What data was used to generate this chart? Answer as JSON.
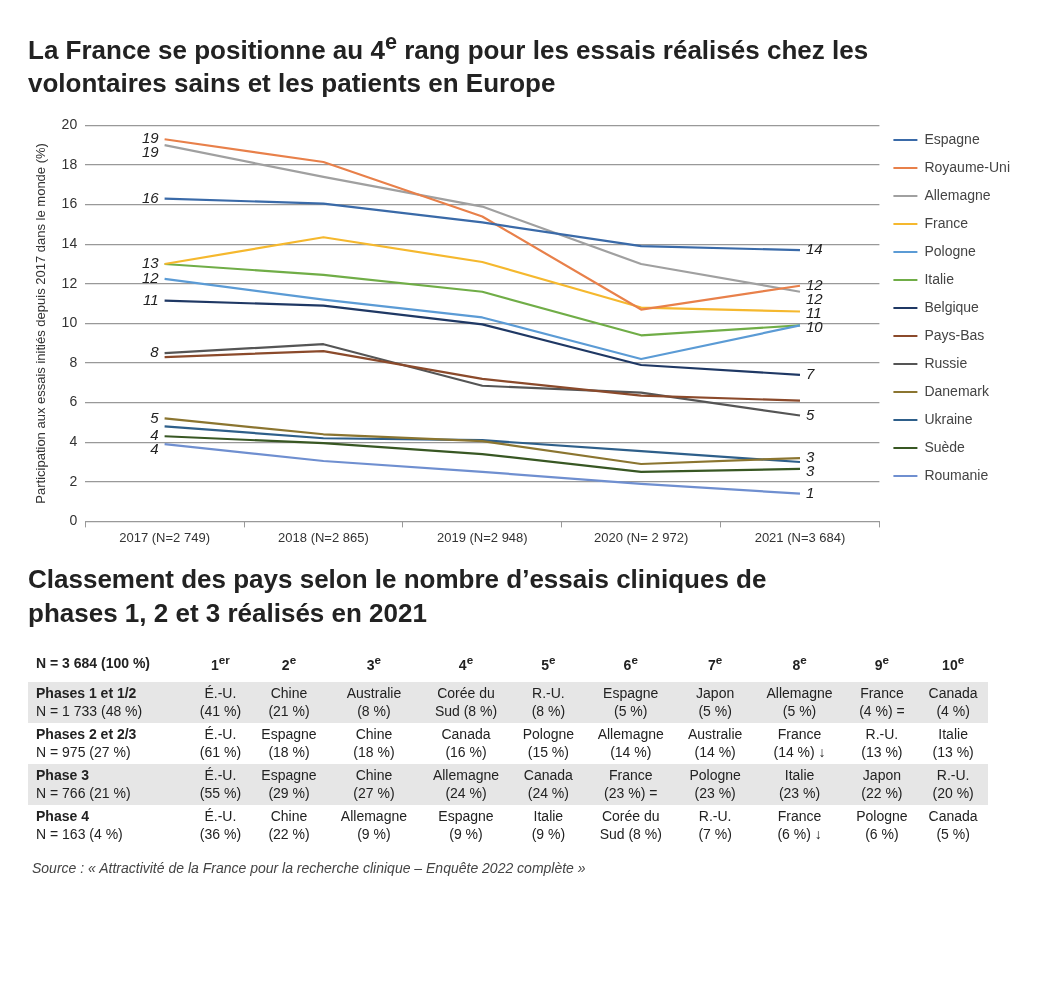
{
  "chart_data": [
    {
      "type": "line",
      "title": "La France se positionne au 4$^{e}$ rang pour les essais réalisés chez les volontaires sains et les patients en Europe",
      "ylabel": "Participation aux essais initiés depuis 2017 dans le monde (%)",
      "categories": [
        "2017 (N=2 749)",
        "2018 (N=2 865)",
        "2019 (N=2 948)",
        "2020 (N= 2 972)",
        "2021 (N=3 684)"
      ],
      "series": [
        {
          "name": "Espagne",
          "color": "#3a6aa8",
          "values": [
            16.3,
            16.05,
            15.1,
            13.9,
            13.7
          ]
        },
        {
          "name": "Royaume-Uni",
          "color": "#e8804a",
          "values": [
            19.3,
            18.15,
            15.4,
            10.7,
            11.9
          ]
        },
        {
          "name": "Allemagne",
          "color": "#a0a0a0",
          "values": [
            19.0,
            17.4,
            15.9,
            13.0,
            11.6
          ]
        },
        {
          "name": "France",
          "color": "#f5b82e",
          "values": [
            13.0,
            14.35,
            13.1,
            10.8,
            10.6
          ]
        },
        {
          "name": "Pologne",
          "color": "#5b9bd5",
          "values": [
            12.25,
            11.2,
            10.3,
            8.2,
            9.9
          ]
        },
        {
          "name": "Italie",
          "color": "#70ad47",
          "values": [
            13.0,
            12.45,
            11.6,
            9.4,
            9.9
          ]
        },
        {
          "name": "Belgique",
          "color": "#1f3864",
          "values": [
            11.15,
            10.9,
            9.95,
            7.9,
            7.4
          ]
        },
        {
          "name": "Pays-Bas",
          "color": "#8b4a2b",
          "values": [
            8.3,
            8.6,
            7.2,
            6.35,
            6.1
          ]
        },
        {
          "name": "Russie",
          "color": "#555555",
          "values": [
            8.5,
            8.95,
            6.85,
            6.5,
            5.35
          ]
        },
        {
          "name": "Danemark",
          "color": "#8b7530",
          "values": [
            5.2,
            4.4,
            4.05,
            2.9,
            3.2
          ]
        },
        {
          "name": "Ukraine",
          "color": "#2e5f8a",
          "values": [
            4.8,
            4.2,
            4.1,
            3.55,
            3.0
          ]
        },
        {
          "name": "Suède",
          "color": "#385723",
          "values": [
            4.3,
            3.95,
            3.4,
            2.5,
            2.65
          ]
        },
        {
          "name": "Roumanie",
          "color": "#6f8fd0",
          "values": [
            3.9,
            3.05,
            2.5,
            1.9,
            1.4
          ]
        }
      ],
      "ylim": [
        0,
        20
      ],
      "yticks": [
        0,
        2,
        4,
        6,
        8,
        10,
        12,
        14,
        16,
        18,
        20
      ],
      "grid": "y",
      "legend": "right",
      "annotations": [
        {
          "text": "19",
          "x": "2017 (N=2 749)",
          "y": 19.3
        },
        {
          "text": "19",
          "x": "2017 (N=2 749)",
          "y": 19.0
        },
        {
          "text": "16",
          "x": "2017 (N=2 749)",
          "y": 16.3
        },
        {
          "text": "13",
          "x": "2017 (N=2 749)",
          "y": 13.0
        },
        {
          "text": "12",
          "x": "2017 (N=2 749)",
          "y": 12.25
        },
        {
          "text": "11",
          "x": "2017 (N=2 749)",
          "y": 11.15
        },
        {
          "text": "8",
          "x": "2017 (N=2 749)",
          "y": 8.5
        },
        {
          "text": "5",
          "x": "2017 (N=2 749)",
          "y": 5.2
        },
        {
          "text": "4",
          "x": "2017 (N=2 749)",
          "y": 4.3
        },
        {
          "text": "4",
          "x": "2017 (N=2 749)",
          "y": 3.9
        },
        {
          "text": "14",
          "x": "2021 (N=3 684)",
          "y": 13.7
        },
        {
          "text": "12",
          "x": "2021 (N=3 684)",
          "y": 11.9
        },
        {
          "text": "12",
          "x": "2021 (N=3 684)",
          "y": 11.6
        },
        {
          "text": "11",
          "x": "2021 (N=3 684)",
          "y": 10.6
        },
        {
          "text": "10",
          "x": "2021 (N=3 684)",
          "y": 9.9
        },
        {
          "text": "7",
          "x": "2021 (N=3 684)",
          "y": 7.4
        },
        {
          "text": "5",
          "x": "2021 (N=3 684)",
          "y": 5.35
        },
        {
          "text": "3",
          "x": "2021 (N=3 684)",
          "y": 3.2
        },
        {
          "text": "3",
          "x": "2021 (N=3 684)",
          "y": 2.65
        },
        {
          "text": "1",
          "x": "2021 (N=3 684)",
          "y": 1.4
        }
      ]
    },
    {
      "type": "other",
      "title": "Classement des pays selon le nombre d’essais cliniques de phases 1, 2 et 3 réalisés en 2021",
      "categories": [
        "N = 3 684 (100 %)",
        "1$^{er}$",
        "2$^{e}$",
        "3$^{e}$",
        "4$^{e}$",
        "5$^{e}$",
        "6$^{e}$",
        "7$^{e}$",
        "8$^{e}$",
        "9$^{e}$",
        "10$^{e}$"
      ],
      "y_categories": [
        "Phases 1 et 1/2\nN = 1 733 (48 %)",
        "Phases 2 et 2/3\nN = 975 (27 %)",
        "Phase 3\nN = 766 (21 %)",
        "Phase 4\nN = 163 (4 %)"
      ],
      "cell_labels": [
        [
          "É.-U.\n(41 %)",
          "Chine\n(21 %)",
          "Australie\n(8 %)",
          "Corée du\nSud (8 %)",
          "R.-U.\n(8 %)",
          "Espagne\n(5 %)",
          "Japon\n(5 %)",
          "Allemagne\n(5 %)",
          "France\n(4 %) =",
          "Canada\n(4 %)"
        ],
        [
          "É.-U.\n(61 %)",
          "Espagne\n(18 %)",
          "Chine\n(18 %)",
          "Canada\n(16 %)",
          "Pologne\n(15 %)",
          "Allemagne\n(14 %)",
          "Australie\n(14 %)",
          "France\n(14 %) ↓",
          "R.-U.\n(13 %)",
          "Italie\n(13 %)"
        ],
        [
          "É.-U.\n(55 %)",
          "Espagne\n(29 %)",
          "Chine\n(27 %)",
          "Allemagne\n(24 %)",
          "Canada\n(24 %)",
          "France\n(23 %) =",
          "Pologne\n(23 %)",
          "Italie\n(23 %)",
          "Japon\n(22 %)",
          "R.-U.\n(20 %)"
        ],
        [
          "É.-U.\n(36 %)",
          "Chine\n(22 %)",
          "Allemagne\n(9 %)",
          "Espagne\n(9 %)",
          "Italie\n(9 %)",
          "Corée du\nSud (8 %)",
          "R.-U.\n(7 %)",
          "France\n(6 %) ↓",
          "Pologne\n(6 %)",
          "Canada\n(5 %)"
        ]
      ],
      "annotations": [
        "Source : « Attractivité de la France pour la recherche clinique – Enquête 2022 complète »"
      ]
    }
  ]
}
